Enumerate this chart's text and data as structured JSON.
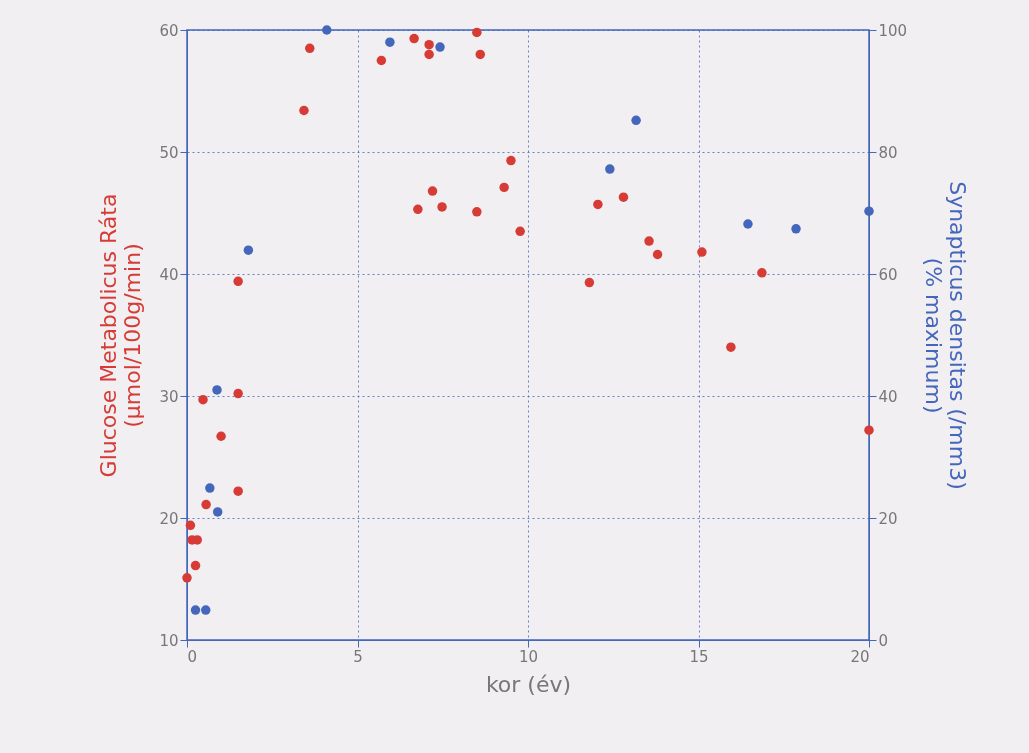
{
  "chart_data": {
    "type": "scatter",
    "xlabel": "kor (év)",
    "ylabel": "Glucose Metabolicus Ráta\n(µmol/100g/min)",
    "y2label": "Synapticus densitas (/mm3)\n(% maximum)",
    "xlim": [
      0,
      20
    ],
    "xticks": [
      0,
      5,
      10,
      15,
      20
    ],
    "ylim": [
      10,
      60
    ],
    "yticks": [
      10,
      20,
      30,
      40,
      50,
      60
    ],
    "y2lim": [
      0,
      100
    ],
    "y2ticks": [
      0,
      20,
      40,
      60,
      80,
      100
    ],
    "grid": true,
    "marker": "circle",
    "series": [
      {
        "color": "#d63c35",
        "axis": "y",
        "x": [
          0,
          0.1,
          0.15,
          0.3,
          0.25,
          0.47,
          0.56,
          1.0,
          1.5,
          1.5,
          1.5,
          3.43,
          3.6,
          5.7,
          6.66,
          7.1,
          7.1,
          8.5,
          8.6,
          6.77,
          7.2,
          7.48,
          8.5,
          9.3,
          9.5,
          9.77,
          11.8,
          12.05,
          12.8,
          13.55,
          13.8,
          15.1,
          15.95,
          16.86,
          20
        ],
        "values": [
          15.1,
          19.4,
          18.2,
          18.2,
          16.1,
          29.7,
          21.1,
          26.7,
          30.2,
          22.2,
          39.4,
          53.4,
          58.5,
          57.5,
          59.3,
          58.8,
          58.0,
          59.8,
          58.0,
          45.3,
          46.8,
          45.5,
          45.1,
          47.1,
          49.3,
          43.5,
          39.3,
          45.7,
          46.3,
          42.7,
          41.6,
          41.8,
          34.0,
          40.1,
          27.2
        ]
      },
      {
        "color": "#4466bb",
        "axis": "y2",
        "x": [
          0.25,
          0.55,
          0.67,
          0.9,
          0.88,
          1.8,
          4.1,
          5.95,
          7.42,
          12.4,
          13.17,
          16.45,
          17.86,
          20
        ],
        "values": [
          4.9,
          4.9,
          24.9,
          21.0,
          41.0,
          63.9,
          100,
          98.0,
          97.2,
          77.2,
          85.2,
          68.2,
          67.4,
          70.3
        ]
      }
    ]
  }
}
